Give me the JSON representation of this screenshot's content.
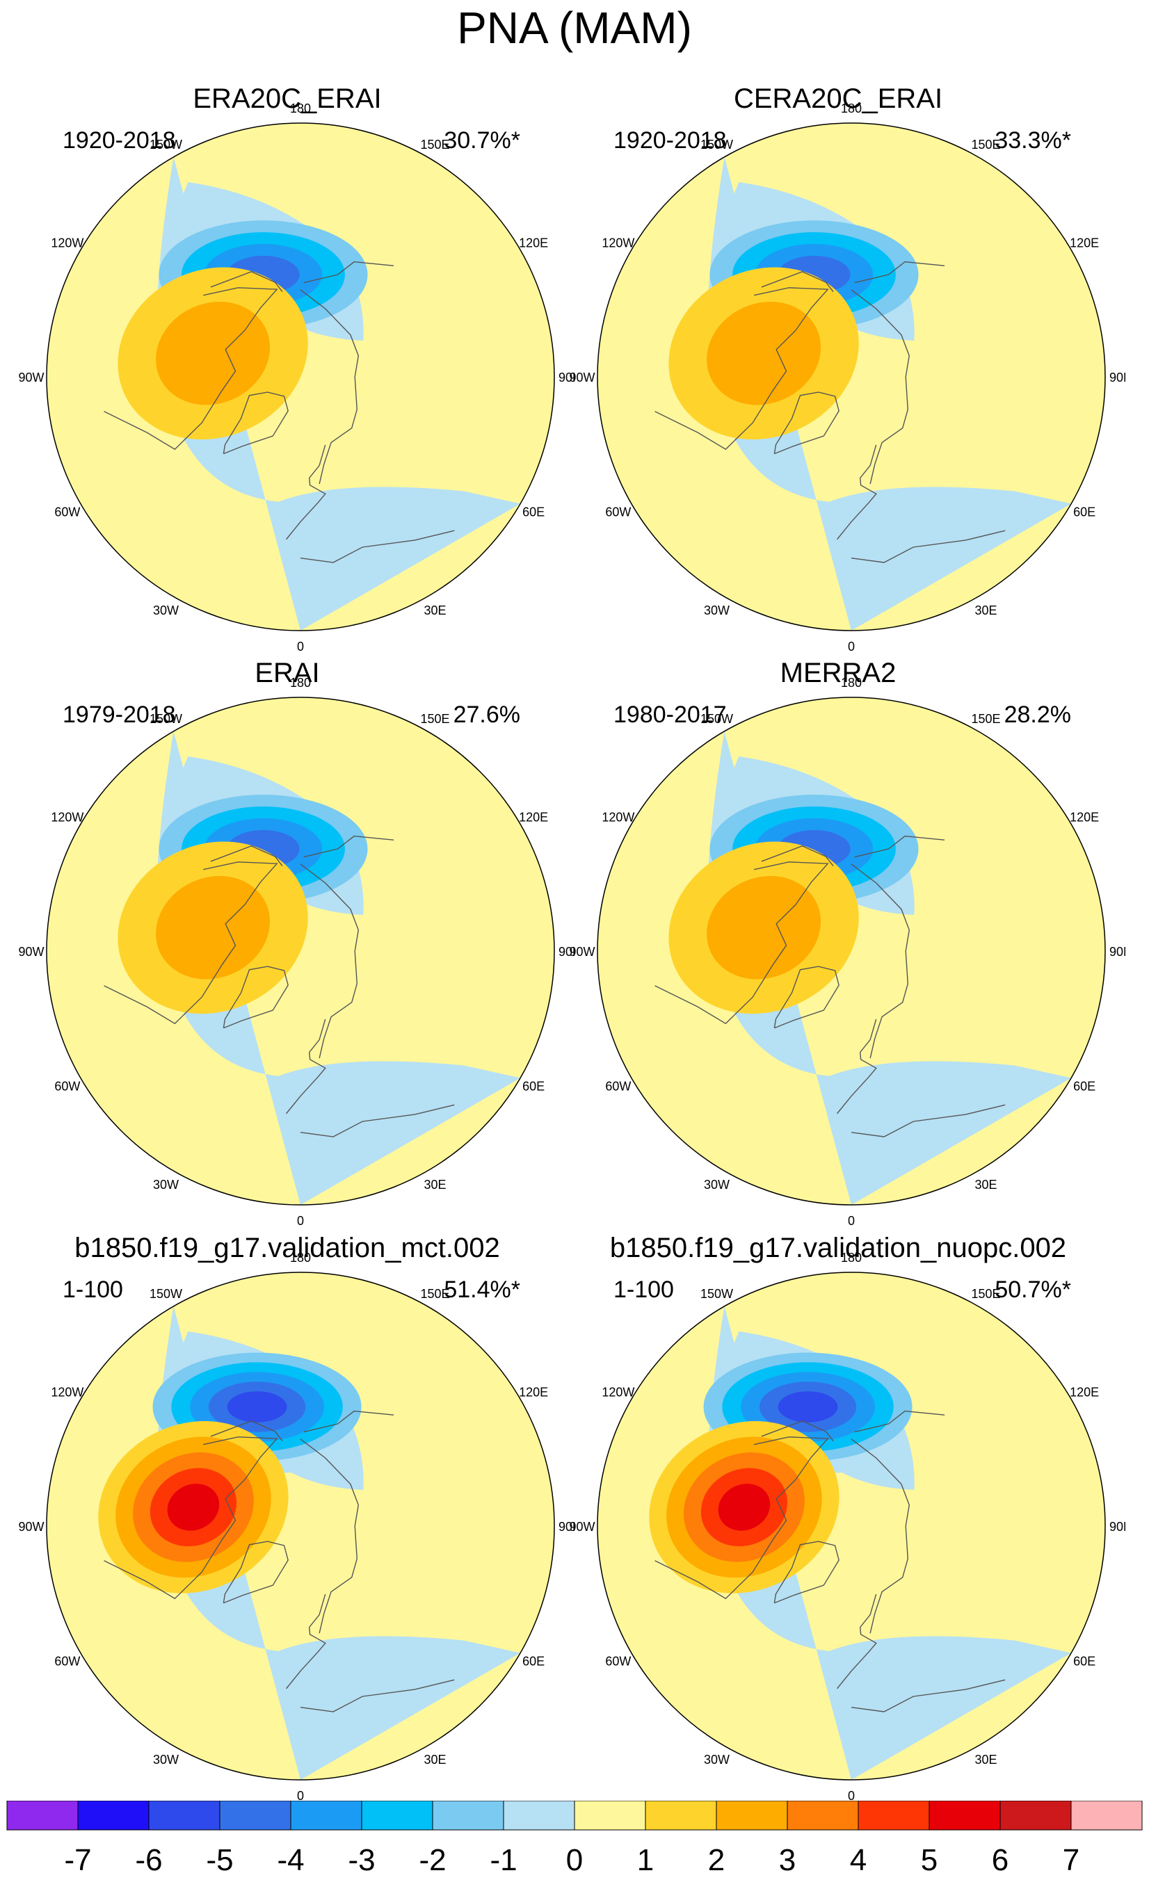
{
  "figure": {
    "title": "PNA (MAM)"
  },
  "chart_data": {
    "type": "contour map",
    "projection": "north polar stereographic",
    "longitude_labels": [
      "180",
      "150E",
      "120E",
      "90E",
      "60E",
      "30E",
      "0",
      "30W",
      "60W",
      "90W",
      "120W",
      "150W"
    ],
    "colorbar": {
      "levels": [
        "-7",
        "-6",
        "-5",
        "-4",
        "-3",
        "-2",
        "-1",
        "0",
        "1",
        "2",
        "3",
        "4",
        "5",
        "6",
        "7"
      ],
      "colors": [
        "#8f29ee",
        "#1f0ff8",
        "#2e49ec",
        "#3371e8",
        "#1c9bf5",
        "#00c0f7",
        "#7acaf1",
        "#b6e0f4",
        "#fef79c",
        "#fed42c",
        "#feac00",
        "#fe7e09",
        "#fe3606",
        "#e80009",
        "#cd191b",
        "#fdb3b5"
      ]
    },
    "panels": [
      {
        "title": "ERA20C_ERAI",
        "period": "1920-2018",
        "explained_variance": "30.7%*",
        "neg_center": {
          "lat": 60,
          "lon": -160,
          "value": -4
        },
        "pos_center": {
          "lat": 65,
          "lon": -105,
          "value": 2
        }
      },
      {
        "title": "CERA20C_ERAI",
        "period": "1920-2018",
        "explained_variance": "33.3%*",
        "neg_center": {
          "lat": 60,
          "lon": -160,
          "value": -4
        },
        "pos_center": {
          "lat": 65,
          "lon": -105,
          "value": 2
        }
      },
      {
        "title": "ERAI",
        "period": "1979-2018",
        "explained_variance": "27.6%",
        "neg_center": {
          "lat": 60,
          "lon": -160,
          "value": -4
        },
        "pos_center": {
          "lat": 65,
          "lon": -105,
          "value": 2
        }
      },
      {
        "title": "MERRA2",
        "period": "1980-2017",
        "explained_variance": "28.2%",
        "neg_center": {
          "lat": 60,
          "lon": -160,
          "value": -4
        },
        "pos_center": {
          "lat": 65,
          "lon": -105,
          "value": 2
        }
      },
      {
        "title": "b1850.f19_g17.validation_mct.002",
        "period": "1-100",
        "explained_variance": "51.4%*",
        "neg_center": {
          "lat": 55,
          "lon": -160,
          "value": -5
        },
        "pos_center": {
          "lat": 60,
          "lon": -100,
          "value": 5
        }
      },
      {
        "title": "b1850.f19_g17.validation_nuopc.002",
        "period": "1-100",
        "explained_variance": "50.7%*",
        "neg_center": {
          "lat": 55,
          "lon": -160,
          "value": -5
        },
        "pos_center": {
          "lat": 60,
          "lon": -100,
          "value": 5
        }
      }
    ]
  }
}
